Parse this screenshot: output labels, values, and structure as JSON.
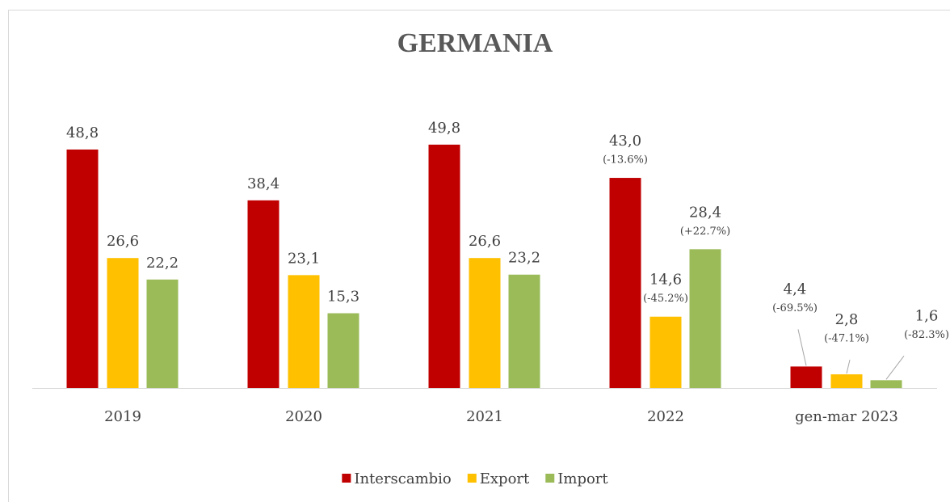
{
  "chart_data": {
    "type": "bar",
    "title": "GERMANIA",
    "categories": [
      "2019",
      "2020",
      "2021",
      "2022",
      "gen-mar 2023"
    ],
    "ylim": [
      0,
      55
    ],
    "legend": "bottom",
    "series": [
      {
        "name": "Interscambio",
        "color": "#c00000",
        "values": [
          48.8,
          38.4,
          49.8,
          43.0,
          4.4
        ],
        "value_labels": [
          "48,8",
          "38,4",
          "49,8",
          "43,0",
          "4,4"
        ],
        "change_labels": [
          null,
          null,
          null,
          "(-13.6%)",
          "(-69.5%)"
        ]
      },
      {
        "name": "Export",
        "color": "#ffc000",
        "values": [
          26.6,
          23.1,
          26.6,
          14.6,
          2.8
        ],
        "value_labels": [
          "26,6",
          "23,1",
          "26,6",
          "14,6",
          "2,8"
        ],
        "change_labels": [
          null,
          null,
          null,
          "(-45.2%)",
          "(-47.1%)"
        ]
      },
      {
        "name": "Import",
        "color": "#9bbb59",
        "values": [
          22.2,
          15.3,
          23.2,
          28.4,
          1.6
        ],
        "value_labels": [
          "22,2",
          "15,3",
          "23,2",
          "28,4",
          "1,6"
        ],
        "change_labels": [
          null,
          null,
          null,
          "(+22.7%)",
          "(-82.3%)"
        ]
      }
    ]
  }
}
